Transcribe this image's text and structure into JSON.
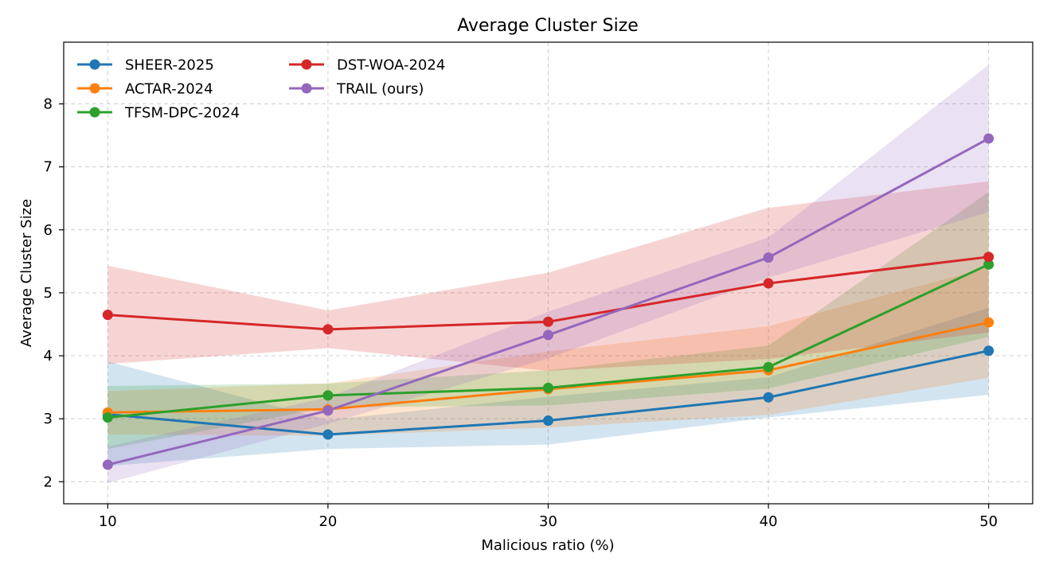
{
  "chart_data": {
    "type": "line",
    "title": "Average Cluster Size",
    "xlabel": "Malicious ratio (%)",
    "ylabel": "Average Cluster Size",
    "x": [
      10,
      20,
      30,
      40,
      50
    ],
    "xticks": [
      "10",
      "20",
      "30",
      "40",
      "50"
    ],
    "yticks": [
      "2",
      "3",
      "4",
      "5",
      "6",
      "7",
      "8"
    ],
    "xlim": [
      8,
      52
    ],
    "ylim": [
      1.65,
      8.98
    ],
    "grid": true,
    "legend_position": "top-left",
    "series": [
      {
        "name": "SHEER-2025",
        "color": "#1f77b4",
        "values": [
          3.07,
          2.75,
          2.97,
          3.34,
          4.08
        ],
        "band_low": [
          2.25,
          2.52,
          2.59,
          3.02,
          3.38
        ],
        "band_high": [
          3.91,
          2.98,
          3.35,
          3.66,
          4.76
        ]
      },
      {
        "name": "ACTAR-2024",
        "color": "#ff7f0e",
        "values": [
          3.1,
          3.15,
          3.47,
          3.77,
          4.53
        ],
        "band_low": [
          2.75,
          2.73,
          2.86,
          3.06,
          3.65
        ],
        "band_high": [
          3.44,
          3.56,
          4.07,
          4.47,
          5.4
        ]
      },
      {
        "name": "TFSM-DPC-2024",
        "color": "#2ca02c",
        "values": [
          3.02,
          3.37,
          3.49,
          3.82,
          5.45
        ],
        "band_low": [
          2.52,
          3.18,
          3.21,
          3.48,
          4.3
        ],
        "band_high": [
          3.52,
          3.56,
          3.77,
          4.16,
          6.6
        ]
      },
      {
        "name": "DST-WOA-2024",
        "color": "#d62728",
        "values": [
          4.65,
          4.42,
          4.54,
          5.15,
          5.57
        ],
        "band_low": [
          3.87,
          4.12,
          3.76,
          3.95,
          4.37
        ],
        "band_high": [
          5.43,
          4.72,
          5.32,
          6.35,
          6.77
        ]
      },
      {
        "name": "TRAIL (ours)",
        "color": "#9467bd",
        "values": [
          2.27,
          3.13,
          4.33,
          5.56,
          7.45
        ],
        "band_low": [
          1.98,
          2.92,
          3.96,
          5.24,
          6.28
        ],
        "band_high": [
          2.56,
          3.34,
          4.7,
          5.88,
          8.62
        ]
      }
    ]
  }
}
